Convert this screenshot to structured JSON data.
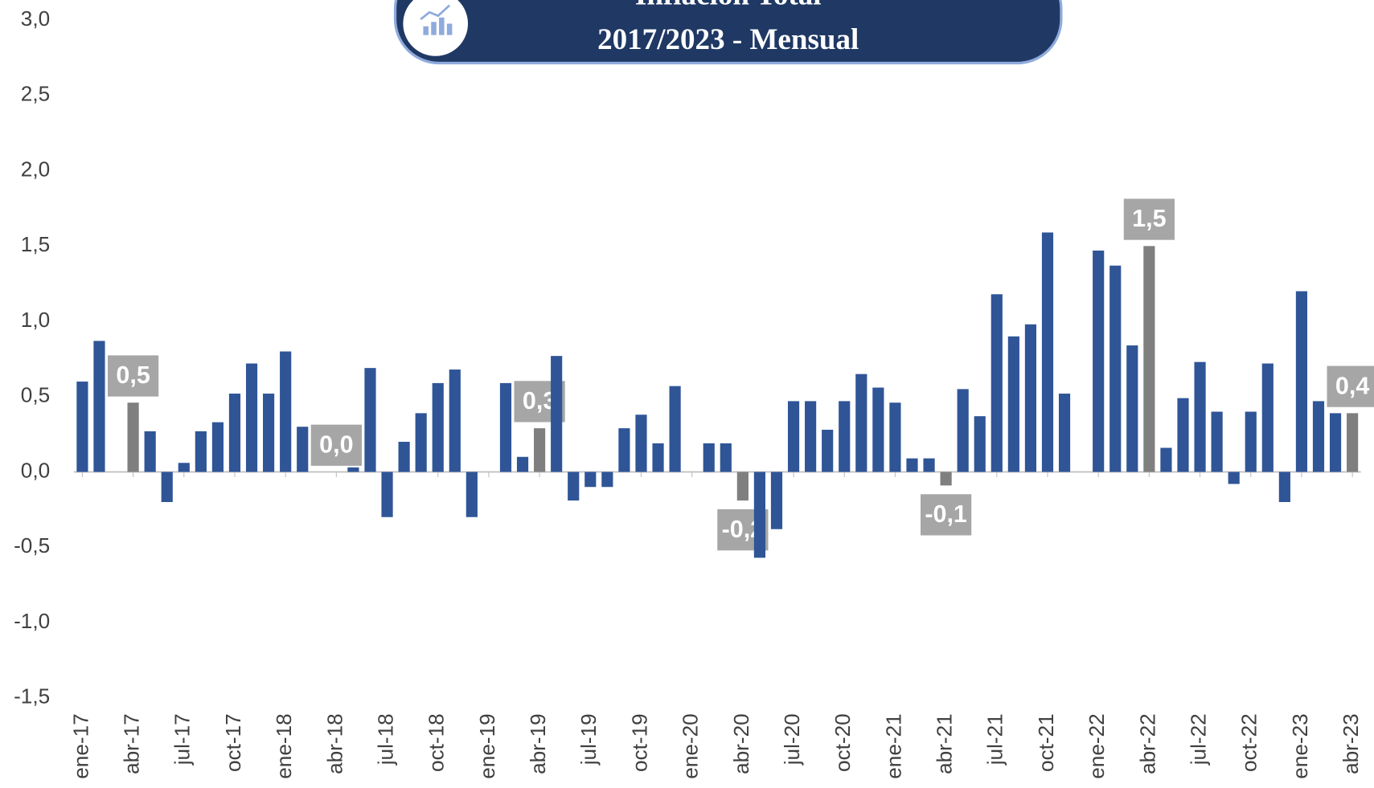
{
  "chart_data": {
    "type": "bar",
    "title": "Inflación Total",
    "subtitle": "2017/2023 - Mensual",
    "categories": [
      "ene-17",
      null,
      null,
      "abr-17",
      null,
      null,
      "jul-17",
      null,
      null,
      "oct-17",
      null,
      null,
      "ene-18",
      null,
      null,
      "abr-18",
      null,
      null,
      "jul-18",
      null,
      null,
      "oct-18",
      null,
      null,
      "ene-19",
      null,
      null,
      "abr-19",
      null,
      null,
      "jul-19",
      null,
      null,
      "oct-19",
      null,
      null,
      "ene-20",
      null,
      null,
      "abr-20",
      null,
      null,
      "jul-20",
      null,
      null,
      "oct-20",
      null,
      null,
      "ene-21",
      null,
      null,
      "abr-21",
      null,
      null,
      "jul-21",
      null,
      null,
      "oct-21",
      null,
      null,
      "ene-22",
      null,
      null,
      "abr-22",
      null,
      null,
      "jul-22",
      null,
      null,
      "oct-22",
      null,
      null,
      "ene-23",
      null,
      null,
      "abr-23"
    ],
    "values": [
      0.6,
      0.87,
      0,
      0.46,
      0.27,
      -0.2,
      0.06,
      0.27,
      0.33,
      0.52,
      0.72,
      0.52,
      0.8,
      0.3,
      0,
      0.0,
      0.03,
      0.69,
      -0.3,
      0.2,
      0.39,
      0.59,
      0.68,
      -0.3,
      0,
      0.59,
      0.1,
      0.29,
      0.77,
      -0.19,
      -0.1,
      -0.1,
      0.29,
      0.38,
      0.19,
      0.57,
      0,
      0.19,
      0.19,
      -0.19,
      -0.57,
      -0.38,
      0.47,
      0.47,
      0.28,
      0.47,
      0.65,
      0.56,
      0.46,
      0.09,
      0.09,
      -0.09,
      0.55,
      0.37,
      1.18,
      0.9,
      0.98,
      1.59,
      0.52,
      0,
      1.47,
      1.37,
      0.84,
      1.5,
      0.16,
      0.49,
      0.73,
      0.4,
      -0.08,
      0.4,
      0.72,
      -0.2,
      1.2,
      0.47,
      0.39,
      0.39
    ],
    "value_labels": [
      null,
      null,
      null,
      "0,5",
      null,
      null,
      null,
      null,
      null,
      null,
      null,
      null,
      null,
      null,
      null,
      "0,0",
      null,
      null,
      null,
      null,
      null,
      null,
      null,
      null,
      null,
      null,
      null,
      "0,3",
      null,
      null,
      null,
      null,
      null,
      null,
      null,
      null,
      null,
      null,
      null,
      "-0,2",
      null,
      null,
      null,
      null,
      null,
      null,
      null,
      null,
      null,
      null,
      null,
      "-0,1",
      null,
      null,
      null,
      null,
      null,
      null,
      null,
      null,
      null,
      null,
      null,
      "1,5",
      null,
      null,
      null,
      null,
      null,
      null,
      null,
      null,
      null,
      null,
      null,
      "0,4"
    ],
    "color": "#2f5597",
    "highlight_color": "#7f7f7f",
    "ylim": [
      -1.5,
      3.0
    ],
    "yticks": [
      {
        "value": -1.5,
        "label": "-1,5"
      },
      {
        "value": -1.0,
        "label": "-1,0"
      },
      {
        "value": -0.5,
        "label": "-0,5"
      },
      {
        "value": 0,
        "label": "0,0"
      },
      {
        "value": 0.5,
        "label": "0,5"
      },
      {
        "value": 1.0,
        "label": "1,0"
      },
      {
        "value": 1.5,
        "label": "1,5"
      },
      {
        "value": 2.0,
        "label": "2,0"
      },
      {
        "value": 2.5,
        "label": "2,5"
      },
      {
        "value": 3.0,
        "label": "3,0"
      }
    ],
    "grid": false
  }
}
